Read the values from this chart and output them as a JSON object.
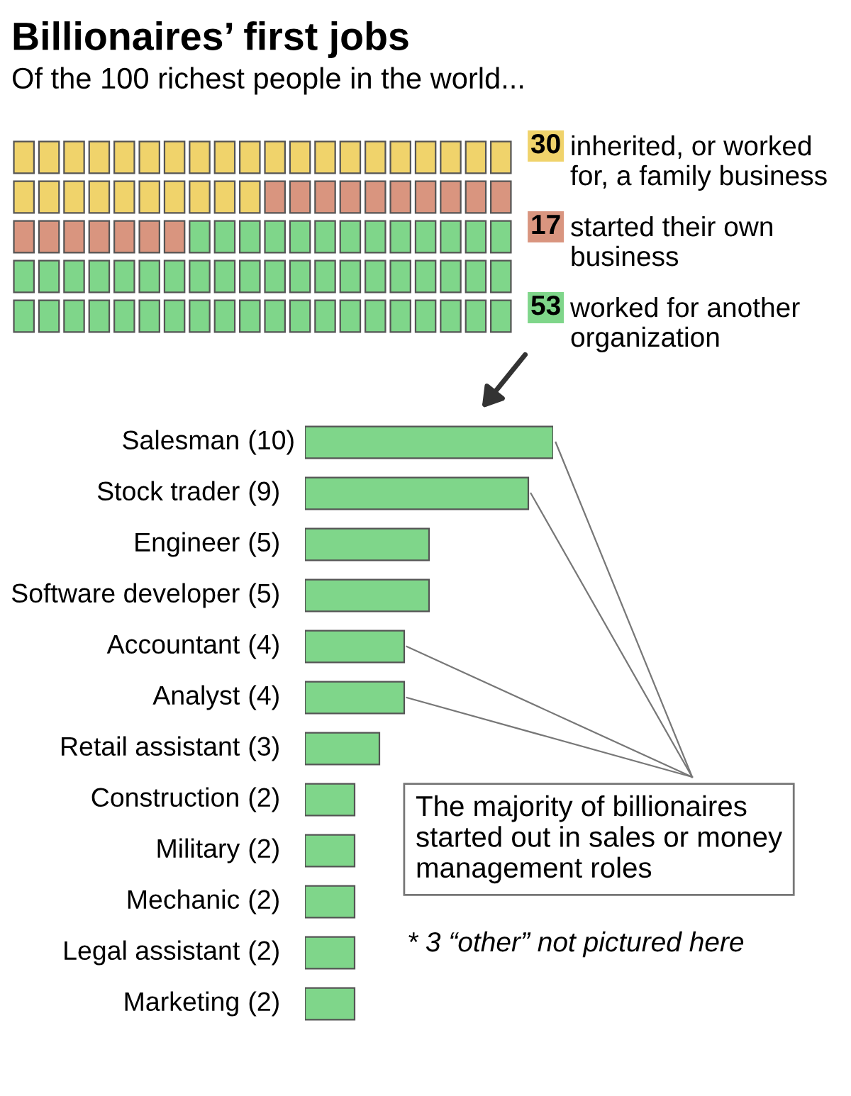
{
  "chart_data": [
    {
      "type": "other",
      "title": "Billionaires’ first jobs",
      "subtitle": "Of the 100 richest people in the world...",
      "categories": [
        "inherited, or worked\nfor, a family business",
        "started their own\nbusiness",
        "worked for another\norganization"
      ],
      "values": [
        30,
        17,
        53
      ],
      "colors": [
        "#f0d36b",
        "#d9957f",
        "#7fd68a"
      ],
      "data_labels": true
    },
    {
      "type": "bar",
      "orientation": "horizontal",
      "categories": [
        "Salesman",
        "Stock trader",
        "Engineer",
        "Software developer",
        "Accountant",
        "Analyst",
        "Retail assistant",
        "Construction",
        "Military",
        "Mechanic",
        "Legal assistant",
        "Marketing"
      ],
      "values": [
        10,
        9,
        5,
        5,
        4,
        4,
        3,
        2,
        2,
        2,
        2,
        2
      ],
      "value_labels": [
        "(10)",
        "(9)",
        "(5)",
        "(5)",
        "(4)",
        "(4)",
        "(3)",
        "(2)",
        "(2)",
        "(2)",
        "(2)",
        "(2)"
      ],
      "color": "#7fd68a",
      "annotations": [
        "The majority of billionaires\nstarted out in sales or money\nmanagement roles",
        "* 3 “other” not pictured here"
      ]
    }
  ]
}
